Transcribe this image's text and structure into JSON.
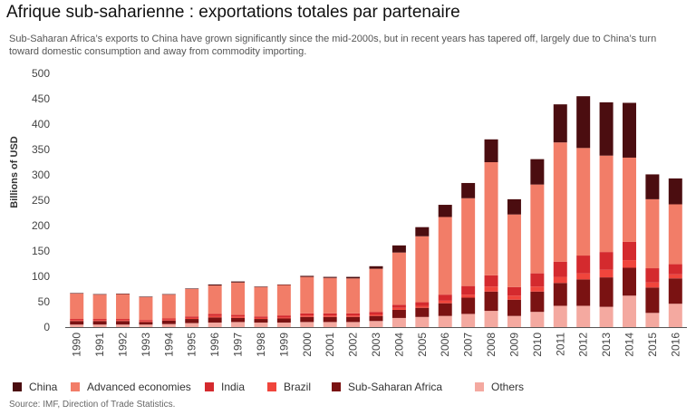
{
  "title": "Afrique sub-saharienne : exportations totales par partenaire",
  "subtitle": "Sub-Saharan Africa’s exports to China have grown significantly since the mid-2000s, but in recent years has tapered off, largely due to China’s turn toward domestic consumption and away from commodity importing.",
  "source": "Source: IMF, Direction of Trade Statistics.",
  "chart_data": {
    "type": "bar",
    "stacked": true,
    "ylabel": "Billions of USD",
    "ylim": [
      0,
      500
    ],
    "yticks": [
      0,
      50,
      100,
      150,
      200,
      250,
      300,
      350,
      400,
      450,
      500
    ],
    "grid": false,
    "legend_position": "bottom",
    "categories": [
      "1990",
      "1991",
      "1992",
      "1993",
      "1994",
      "1995",
      "1996",
      "1997",
      "1998",
      "1999",
      "2000",
      "2001",
      "2002",
      "2003",
      "2004",
      "2005",
      "2006",
      "2007",
      "2008",
      "2009",
      "2010",
      "2011",
      "2012",
      "2013",
      "2014",
      "2015",
      "2016"
    ],
    "series": [
      {
        "name": "Others",
        "color": "#f4a9a0",
        "values": [
          5,
          5,
          5,
          5,
          6,
          8,
          9,
          10,
          9,
          9,
          10,
          10,
          10,
          12,
          18,
          20,
          22,
          26,
          32,
          22,
          30,
          42,
          42,
          40,
          62,
          28,
          46
        ]
      },
      {
        "name": "Sub-Saharan Africa",
        "color": "#7a1212",
        "values": [
          7,
          7,
          7,
          5,
          7,
          8,
          10,
          8,
          7,
          8,
          10,
          10,
          10,
          10,
          16,
          18,
          25,
          32,
          38,
          32,
          40,
          45,
          52,
          58,
          55,
          50,
          50
        ]
      },
      {
        "name": "Brazil",
        "color": "#f0453c",
        "values": [
          2,
          2,
          2,
          2,
          2,
          2,
          3,
          3,
          2,
          2,
          3,
          3,
          3,
          3,
          4,
          4,
          5,
          6,
          10,
          8,
          10,
          12,
          12,
          15,
          15,
          10,
          8
        ]
      },
      {
        "name": "India",
        "color": "#d42a2e",
        "values": [
          2,
          2,
          2,
          2,
          2,
          3,
          4,
          3,
          3,
          4,
          4,
          4,
          4,
          5,
          6,
          7,
          12,
          17,
          22,
          17,
          26,
          30,
          35,
          35,
          36,
          28,
          20
        ]
      },
      {
        "name": "Advanced economies",
        "color": "#f27d68",
        "values": [
          50,
          48,
          49,
          45,
          47,
          54,
          56,
          64,
          58,
          60,
          72,
          70,
          69,
          85,
          103,
          130,
          153,
          173,
          223,
          143,
          175,
          235,
          212,
          190,
          166,
          136,
          118
        ]
      },
      {
        "name": "China",
        "color": "#4b0d10",
        "values": [
          1,
          1,
          1,
          1,
          1,
          1,
          2,
          2,
          1,
          1,
          2,
          2,
          3,
          5,
          14,
          18,
          24,
          30,
          45,
          30,
          50,
          75,
          102,
          105,
          108,
          49,
          51
        ]
      }
    ]
  }
}
